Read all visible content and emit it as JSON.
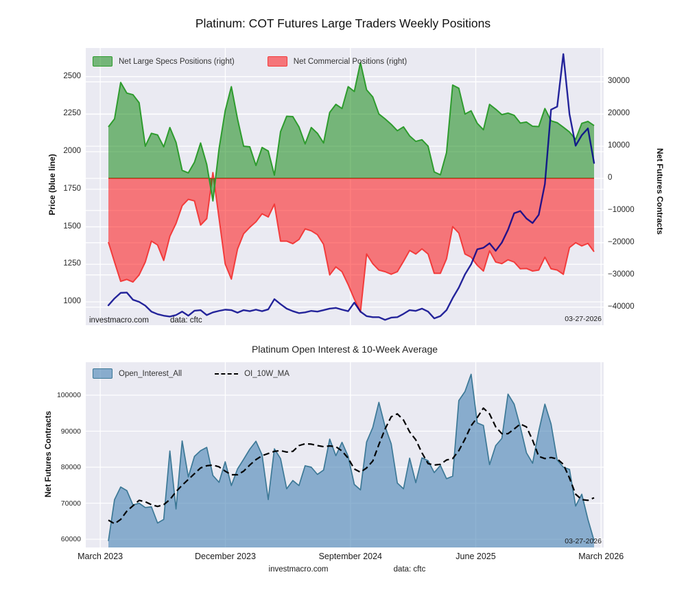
{
  "figure": {
    "title": "Platinum: COT Futures Large Traders Weekly Positions",
    "background": "#ffffff",
    "axes_background": "#eaeaf2",
    "grid_color": "#ffffff",
    "footer": {
      "brand": "investmacro.com",
      "source": "data: cftc"
    }
  },
  "chart_data": [
    {
      "type": "area",
      "title": "",
      "legend": [
        {
          "label": "Net Large Specs Positions (right)",
          "fill": "#008000",
          "stroke": "#2d9b2d"
        },
        {
          "label": "Net Commercial Positions (right)",
          "fill": "#ff0000",
          "stroke": "#f23b3b"
        }
      ],
      "left_axis": {
        "label": "Price (blue line)",
        "tick_values": [
          1000,
          1250,
          1500,
          1750,
          2000,
          2250,
          2500
        ],
        "tick_labels": [
          "1000",
          "1250",
          "1500",
          "1750",
          "2000",
          "2250",
          "2500"
        ],
        "range": [
          845,
          2692
        ]
      },
      "right_axis": {
        "label": "Net Futures Contracts",
        "tick_values": [
          -40000,
          -30000,
          -20000,
          -10000,
          0,
          10000,
          20000,
          30000
        ],
        "tick_labels": [
          "−40000",
          "−30000",
          "−20000",
          "−10000",
          "0",
          "10000",
          "20000",
          "30000"
        ],
        "range": [
          -45600,
          40500
        ]
      },
      "x_axis": {
        "tick_labels": [
          "March 2023",
          "December 2023",
          "September 2024",
          "June 2025",
          "March 2026"
        ],
        "tick_pos": [
          0.028,
          0.2695,
          0.511,
          0.753,
          0.995
        ],
        "show_labels": false
      },
      "series": [
        {
          "name": "Net Large Specs Positions",
          "axis": "right",
          "style": "area-to-zero",
          "fill": "#008000",
          "fill_opacity": 0.5,
          "stroke": "#2d9b2d",
          "width": 2,
          "values": [
            16000,
            18500,
            29800,
            26500,
            26000,
            23500,
            10000,
            14000,
            13500,
            9800,
            15800,
            11200,
            2500,
            1700,
            5000,
            11000,
            4300,
            -7000,
            9200,
            21000,
            28500,
            18500,
            10000,
            9800,
            4000,
            9600,
            8500,
            1000,
            14500,
            19300,
            19200,
            16000,
            10700,
            15800,
            14000,
            11000,
            20500,
            23000,
            21700,
            28500,
            27000,
            36000,
            27500,
            25300,
            20000,
            18500,
            16800,
            14800,
            16000,
            13200,
            11500,
            12000,
            10000,
            2000,
            1100,
            8000,
            29000,
            28000,
            20000,
            21000,
            17100,
            15100,
            23000,
            21500,
            19800,
            20300,
            19600,
            17200,
            17500,
            16200,
            16100,
            21700,
            17900,
            17300,
            15900,
            14400,
            12100,
            17100,
            17700,
            16400
          ]
        },
        {
          "name": "Net Commercial Positions",
          "axis": "right",
          "style": "area-to-zero",
          "fill": "#ff0000",
          "fill_opacity": 0.5,
          "stroke": "#f23b3b",
          "width": 2,
          "values": [
            -19800,
            -26000,
            -32000,
            -31400,
            -32200,
            -30000,
            -26000,
            -19500,
            -20700,
            -25500,
            -18000,
            -14000,
            -8500,
            -6500,
            -7000,
            -14500,
            -12500,
            1800,
            -12400,
            -26600,
            -31300,
            -22000,
            -17200,
            -15200,
            -13500,
            -11000,
            -12000,
            -8000,
            -19500,
            -19500,
            -20300,
            -19000,
            -15700,
            -16300,
            -17500,
            -20500,
            -30000,
            -27500,
            -29000,
            -33000,
            -37500,
            -41500,
            -23500,
            -26500,
            -28500,
            -29000,
            -29800,
            -29000,
            -25800,
            -22400,
            -23500,
            -21900,
            -23500,
            -29500,
            -29500,
            -25000,
            -15000,
            -17000,
            -23500,
            -24500,
            -27000,
            -28800,
            -22500,
            -26000,
            -26500,
            -25300,
            -26000,
            -28100,
            -28000,
            -28800,
            -28500,
            -24500,
            -28100,
            -28500,
            -29800,
            -21500,
            -20000,
            -21000,
            -20200,
            -22800
          ]
        },
        {
          "name": "Price",
          "axis": "left",
          "style": "line",
          "stroke": "#00008b",
          "opacity": 0.85,
          "width": 2.4,
          "values": [
            977,
            1023,
            1060,
            1062,
            1014,
            1000,
            975,
            935,
            918,
            908,
            902,
            912,
            935,
            908,
            941,
            945,
            912,
            930,
            940,
            948,
            945,
            928,
            945,
            938,
            948,
            938,
            950,
            1018,
            985,
            955,
            938,
            925,
            930,
            940,
            935,
            945,
            955,
            960,
            948,
            938,
            995,
            935,
            905,
            898,
            898,
            880,
            895,
            898,
            920,
            945,
            940,
            955,
            935,
            890,
            905,
            945,
            1025,
            1095,
            1183,
            1250,
            1350,
            1360,
            1390,
            1340,
            1395,
            1480,
            1590,
            1605,
            1555,
            1525,
            1580,
            1785,
            2280,
            2300,
            2650,
            2250,
            2040,
            2110,
            2155,
            1925
          ]
        }
      ],
      "annotations": {
        "watermark": "investmacro.com",
        "source": "data: cftc",
        "date": "03-27-2026"
      }
    },
    {
      "type": "area",
      "title": "Platinum Open Interest & 10-Week Average",
      "legend": [
        {
          "label": "Open_Interest_All",
          "fill": "#4682b4",
          "stroke": "#3c7896"
        },
        {
          "label": "OI_10W_MA",
          "stroke": "#000000",
          "dashed": true
        }
      ],
      "left_axis": {
        "label": "Net Futures Contracts",
        "tick_values": [
          60000,
          70000,
          80000,
          90000,
          100000
        ],
        "tick_labels": [
          "60000",
          "70000",
          "80000",
          "90000",
          "100000"
        ],
        "range": [
          57200,
          108900
        ]
      },
      "x_axis": {
        "tick_labels": [
          "March 2023",
          "December 2023",
          "September 2024",
          "June 2025",
          "March 2026"
        ],
        "tick_pos": [
          0.028,
          0.2695,
          0.511,
          0.753,
          0.995
        ],
        "show_labels": true
      },
      "series": [
        {
          "name": "Open_Interest_All",
          "axis": "left",
          "style": "area-to-bottom",
          "fill": "#4682b4",
          "fill_opacity": 0.6,
          "stroke": "#3c7896",
          "width": 1.7,
          "values": [
            59500,
            71000,
            74500,
            73500,
            69500,
            70000,
            68800,
            69000,
            64500,
            65500,
            84500,
            68400,
            87300,
            77300,
            83000,
            84600,
            85500,
            77700,
            75800,
            81500,
            74900,
            79500,
            82200,
            85000,
            87200,
            83400,
            71000,
            85100,
            82400,
            74000,
            76300,
            74900,
            80400,
            80000,
            78000,
            79200,
            87800,
            83200,
            86900,
            83000,
            75200,
            73700,
            87000,
            91000,
            98000,
            91300,
            86500,
            75600,
            74000,
            82500,
            75700,
            82600,
            81800,
            78500,
            80500,
            76800,
            77500,
            98500,
            101000,
            105800,
            92300,
            91600,
            80700,
            86000,
            88000,
            100300,
            97500,
            91200,
            84000,
            81100,
            90000,
            97500,
            92000,
            82000,
            80000,
            79400,
            69200,
            72500,
            65500,
            59600
          ]
        },
        {
          "name": "OI_10W_MA",
          "axis": "left",
          "style": "dashed-line",
          "stroke": "#000000",
          "width": 2.2,
          "dash": "9 5",
          "values": [
            65300,
            64300,
            65500,
            67800,
            69300,
            70800,
            70400,
            69600,
            69100,
            69600,
            71000,
            73200,
            75000,
            76600,
            78200,
            79800,
            80400,
            80600,
            80100,
            78900,
            77900,
            77900,
            78900,
            80600,
            82100,
            83200,
            83800,
            84400,
            84600,
            84200,
            84400,
            86000,
            86500,
            86400,
            86000,
            85700,
            85900,
            85700,
            84500,
            82500,
            79500,
            78600,
            79800,
            81700,
            86300,
            90600,
            94000,
            94800,
            93100,
            89800,
            87600,
            84000,
            81000,
            80600,
            80800,
            82000,
            82400,
            84600,
            87800,
            91500,
            93800,
            96400,
            94800,
            91200,
            89300,
            89300,
            90600,
            92000,
            91200,
            87500,
            83000,
            82400,
            82700,
            82300,
            80800,
            77000,
            72500,
            71000,
            70800,
            71500
          ]
        }
      ],
      "annotations": {
        "date": "03-27-2026"
      }
    }
  ]
}
